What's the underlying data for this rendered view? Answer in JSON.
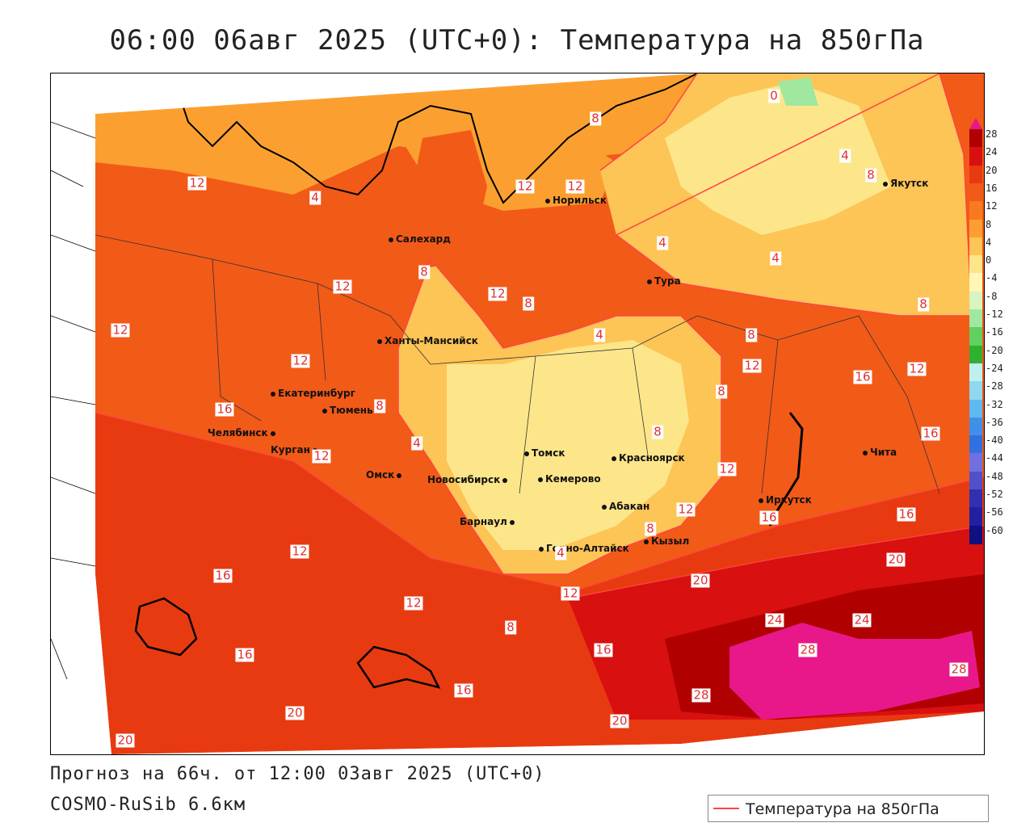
{
  "title": "06:00 06авг 2025 (UTC+0): Температура на 850гПа",
  "footer": {
    "forecast": "Прогноз на 66ч. от 12:00 03авг 2025 (UTC+0)",
    "model": "COSMO-RuSib 6.6км"
  },
  "legend": {
    "label": "Температура на 850гПа"
  },
  "scale": {
    "ticks": [
      "28",
      "24",
      "20",
      "16",
      "12",
      "8",
      "4",
      "0",
      "-4",
      "-8",
      "-12",
      "-16",
      "-20",
      "-24",
      "-28",
      "-32",
      "-36",
      "-40",
      "-44",
      "-48",
      "-52",
      "-56",
      "-60"
    ],
    "colors": [
      "#b00000",
      "#d81010",
      "#e83a10",
      "#f25a18",
      "#f87a20",
      "#fba030",
      "#fdc456",
      "#fde68a",
      "#fff6b8",
      "#d8f4c0",
      "#a0e8a0",
      "#60d060",
      "#30b030",
      "#bef0f0",
      "#90d8f0",
      "#60b8f0",
      "#4090e8",
      "#3070e0",
      "#7070e0",
      "#5050c8",
      "#3030b0",
      "#2020a0",
      "#101080"
    ]
  },
  "cities": [
    {
      "name": "Норильск"
    },
    {
      "name": "Салехард"
    },
    {
      "name": "Тура"
    },
    {
      "name": "Якутск"
    },
    {
      "name": "Ханты-Мансийск"
    },
    {
      "name": "Екатеринбург"
    },
    {
      "name": "Тюмень"
    },
    {
      "name": "Челябинск"
    },
    {
      "name": "Курган"
    },
    {
      "name": "Омск"
    },
    {
      "name": "Новосибирск"
    },
    {
      "name": "Томск"
    },
    {
      "name": "Кемерово"
    },
    {
      "name": "Красноярск"
    },
    {
      "name": "Барнаул"
    },
    {
      "name": "Абакан"
    },
    {
      "name": "Горно-Алтайск"
    },
    {
      "name": "Кызыл"
    },
    {
      "name": "Иркутск"
    },
    {
      "name": "Чита"
    }
  ],
  "contour_labels": [
    "12",
    "4",
    "8",
    "12",
    "12",
    "8",
    "0",
    "4",
    "8",
    "12",
    "8",
    "12",
    "4",
    "4",
    "12",
    "12",
    "8",
    "4",
    "8",
    "12",
    "12",
    "4",
    "8",
    "16",
    "8",
    "12",
    "16",
    "8",
    "12",
    "4",
    "16",
    "12",
    "12",
    "8",
    "16",
    "16",
    "20",
    "20",
    "12",
    "12",
    "24",
    "24",
    "28",
    "16",
    "16",
    "8",
    "16",
    "16",
    "20",
    "20",
    "20",
    "28",
    "28"
  ]
}
